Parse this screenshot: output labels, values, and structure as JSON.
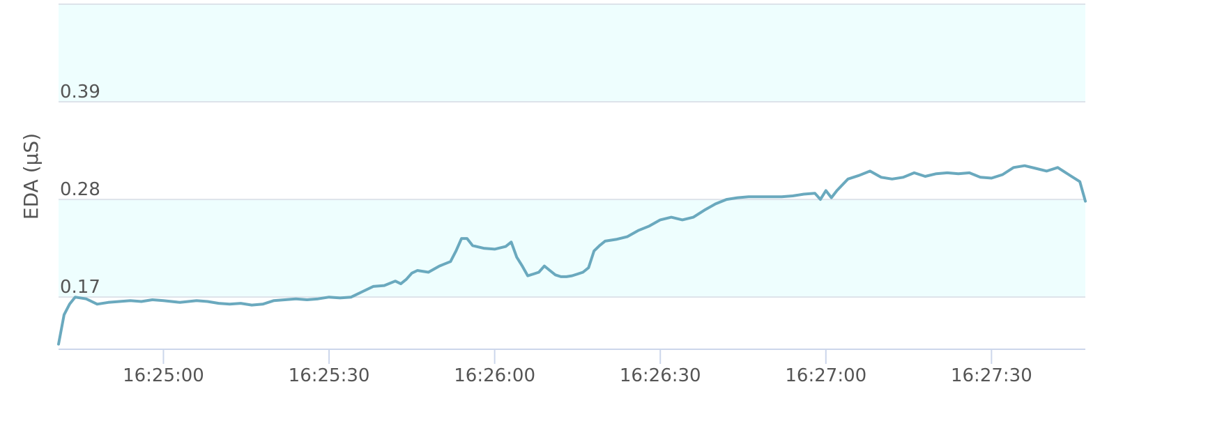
{
  "chart_data": {
    "type": "line",
    "title": "",
    "xlabel": "",
    "ylabel": "EDA (µS)",
    "x_ticks": [
      "16:25:00",
      "16:25:30",
      "16:26:00",
      "16:26:30",
      "16:27:00",
      "16:27:30"
    ],
    "y_ticks": [
      "0.17",
      "0.28",
      "0.39"
    ],
    "xlim": [
      "16:24:41",
      "16:27:47"
    ],
    "ylim": [
      0.112,
      0.5
    ],
    "grid": true,
    "bands": [
      {
        "from": 0.17,
        "to": 0.28,
        "color": "#eefefe"
      },
      {
        "from": 0.39,
        "to": 0.5,
        "color": "#eefefe"
      }
    ],
    "series": [
      {
        "color": "#6aa9be",
        "x": [
          "16:24:41",
          "16:24:42",
          "16:24:43",
          "16:24:44",
          "16:24:46",
          "16:24:48",
          "16:24:50",
          "16:24:52",
          "16:24:54",
          "16:24:56",
          "16:24:58",
          "16:25:00",
          "16:25:03",
          "16:25:06",
          "16:25:08",
          "16:25:10",
          "16:25:12",
          "16:25:14",
          "16:25:16",
          "16:25:18",
          "16:25:20",
          "16:25:22",
          "16:25:24",
          "16:25:26",
          "16:25:28",
          "16:25:30",
          "16:25:32",
          "16:25:34",
          "16:25:36",
          "16:25:38",
          "16:25:40",
          "16:25:42",
          "16:25:43",
          "16:25:44",
          "16:25:45",
          "16:25:46",
          "16:25:48",
          "16:25:50",
          "16:25:52",
          "16:25:53",
          "16:25:54",
          "16:25:55",
          "16:25:56",
          "16:25:58",
          "16:26:00",
          "16:26:02",
          "16:26:03",
          "16:26:04",
          "16:26:05",
          "16:26:06",
          "16:26:07",
          "16:26:08",
          "16:26:09",
          "16:26:10",
          "16:26:11",
          "16:26:12",
          "16:26:13",
          "16:26:14",
          "16:26:15",
          "16:26:16",
          "16:26:17",
          "16:26:18",
          "16:26:19",
          "16:26:20",
          "16:26:22",
          "16:26:24",
          "16:26:26",
          "16:26:28",
          "16:26:30",
          "16:26:32",
          "16:26:34",
          "16:26:36",
          "16:26:38",
          "16:26:40",
          "16:26:42",
          "16:26:44",
          "16:26:46",
          "16:26:48",
          "16:26:50",
          "16:26:52",
          "16:26:54",
          "16:26:56",
          "16:26:58",
          "16:26:59",
          "16:27:00",
          "16:27:01",
          "16:27:02",
          "16:27:04",
          "16:27:06",
          "16:27:08",
          "16:27:10",
          "16:27:12",
          "16:27:14",
          "16:27:16",
          "16:27:18",
          "16:27:20",
          "16:27:22",
          "16:27:24",
          "16:27:26",
          "16:27:28",
          "16:27:30",
          "16:27:32",
          "16:27:34",
          "16:27:36",
          "16:27:38",
          "16:27:40",
          "16:27:42",
          "16:27:44",
          "16:27:46",
          "16:27:47"
        ],
        "y": [
          0.117,
          0.15,
          0.162,
          0.17,
          0.168,
          0.162,
          0.164,
          0.165,
          0.166,
          0.165,
          0.167,
          0.166,
          0.164,
          0.166,
          0.165,
          0.163,
          0.162,
          0.163,
          0.161,
          0.162,
          0.166,
          0.167,
          0.168,
          0.167,
          0.168,
          0.17,
          0.169,
          0.17,
          0.176,
          0.182,
          0.183,
          0.188,
          0.185,
          0.19,
          0.197,
          0.2,
          0.198,
          0.205,
          0.21,
          0.222,
          0.236,
          0.236,
          0.228,
          0.225,
          0.224,
          0.227,
          0.232,
          0.215,
          0.205,
          0.194,
          0.196,
          0.198,
          0.205,
          0.2,
          0.195,
          0.193,
          0.193,
          0.194,
          0.196,
          0.198,
          0.203,
          0.222,
          0.228,
          0.233,
          0.235,
          0.238,
          0.245,
          0.25,
          0.257,
          0.26,
          0.257,
          0.26,
          0.268,
          0.275,
          0.28,
          0.282,
          0.283,
          0.283,
          0.283,
          0.283,
          0.284,
          0.286,
          0.287,
          0.28,
          0.29,
          0.282,
          0.29,
          0.303,
          0.307,
          0.312,
          0.305,
          0.303,
          0.305,
          0.31,
          0.306,
          0.309,
          0.31,
          0.309,
          0.31,
          0.305,
          0.304,
          0.308,
          0.316,
          0.318,
          0.315,
          0.312,
          0.316,
          0.308,
          0.3,
          0.278
        ]
      }
    ]
  }
}
